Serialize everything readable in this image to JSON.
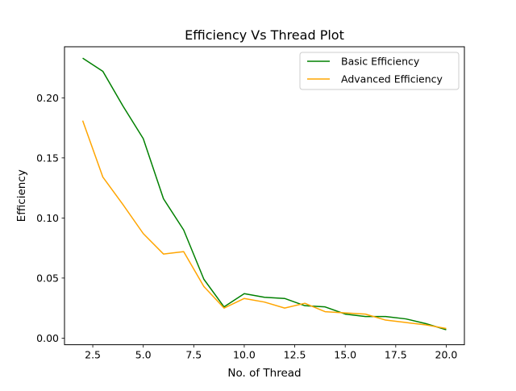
{
  "chart_data": {
    "type": "line",
    "title": "Efficiency Vs Thread Plot",
    "xlabel": "No. of Thread",
    "ylabel": "Efficiency",
    "xlim": [
      1.1,
      20.9
    ],
    "ylim": [
      -0.0055,
      0.2425
    ],
    "xticks": [
      2.5,
      5.0,
      7.5,
      10.0,
      12.5,
      15.0,
      17.5,
      20.0
    ],
    "xtick_labels": [
      "2.5",
      "5.0",
      "7.5",
      "10.0",
      "12.5",
      "15.0",
      "17.5",
      "20.0"
    ],
    "yticks": [
      0.0,
      0.05,
      0.1,
      0.15,
      0.2
    ],
    "ytick_labels": [
      "0.00",
      "0.05",
      "0.10",
      "0.15",
      "0.20"
    ],
    "grid": false,
    "legend_position": "top-right",
    "x": [
      2,
      3,
      4,
      5,
      6,
      7,
      8,
      9,
      10,
      11,
      12,
      13,
      14,
      15,
      16,
      17,
      18,
      19,
      20
    ],
    "series": [
      {
        "name": "Basic Efficiency",
        "color": "#008000",
        "values": [
          0.233,
          0.222,
          0.193,
          0.166,
          0.116,
          0.09,
          0.049,
          0.026,
          0.037,
          0.034,
          0.033,
          0.027,
          0.026,
          0.02,
          0.018,
          0.018,
          0.016,
          0.012,
          0.007
        ]
      },
      {
        "name": "Advanced Efficiency",
        "color": "#FFA500",
        "values": [
          0.181,
          0.134,
          0.111,
          0.087,
          0.07,
          0.072,
          0.043,
          0.025,
          0.033,
          0.03,
          0.025,
          0.029,
          0.022,
          0.021,
          0.02,
          0.015,
          0.013,
          0.011,
          0.008
        ]
      }
    ]
  }
}
